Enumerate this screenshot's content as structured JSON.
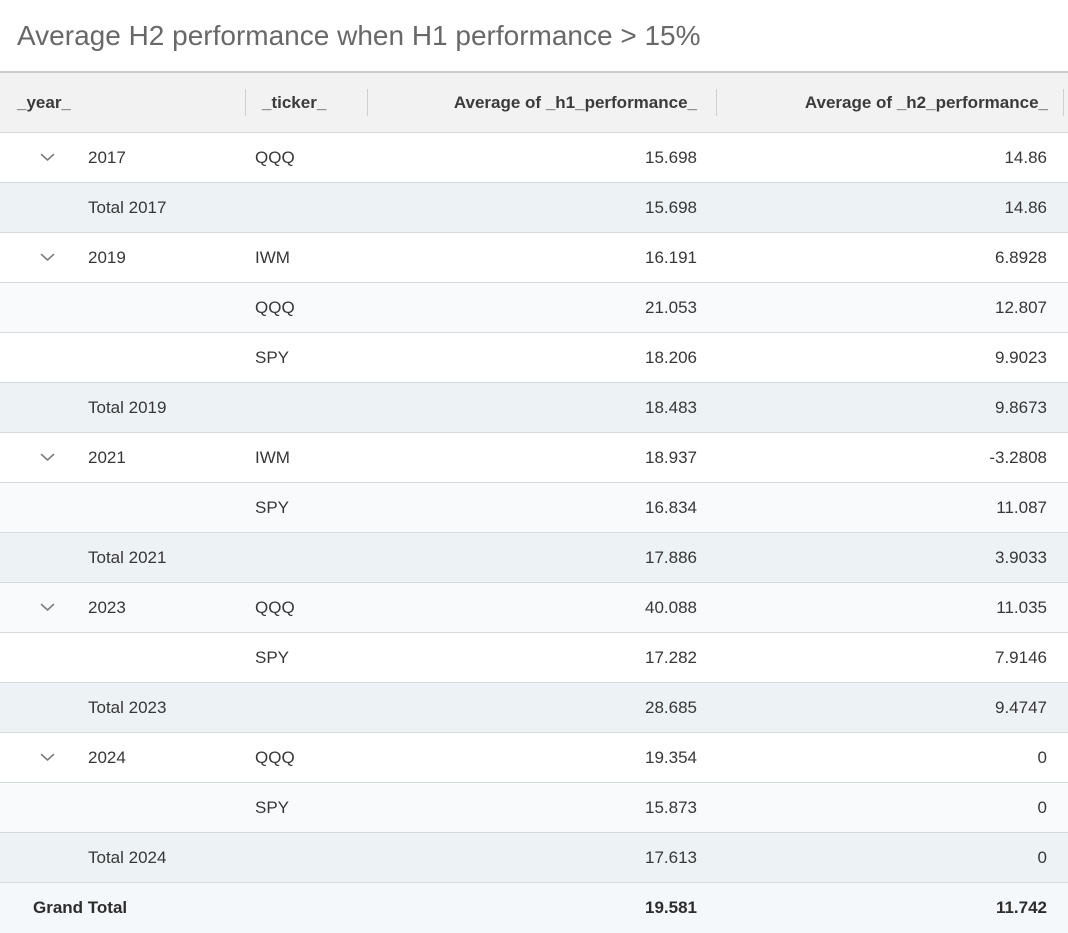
{
  "title": "Average H2 performance when H1 performance > 15%",
  "columns": [
    {
      "key": "year",
      "label": "_year_",
      "align": "left"
    },
    {
      "key": "ticker",
      "label": "_ticker_",
      "align": "left"
    },
    {
      "key": "h1",
      "label": "Average of _h1_performance_",
      "align": "right"
    },
    {
      "key": "h2",
      "label": "Average of _h2_performance_",
      "align": "right"
    }
  ],
  "icons": {
    "collapse_icon": "chevron-down"
  },
  "colors": {
    "header_bg": "#f2f2f2",
    "total_row_bg": "#edf2f5",
    "grand_total_bg": "#f4f8fa",
    "stripe_bg": "#f8fafc"
  },
  "rows": [
    {
      "type": "data",
      "expandable": true,
      "year": "2017",
      "ticker": "QQQ",
      "h1": "15.698",
      "h2": "14.86"
    },
    {
      "type": "total",
      "label": "Total 2017",
      "h1": "15.698",
      "h2": "14.86"
    },
    {
      "type": "data",
      "expandable": true,
      "year": "2019",
      "ticker": "IWM",
      "h1": "16.191",
      "h2": "6.8928"
    },
    {
      "type": "data",
      "expandable": false,
      "year": "",
      "ticker": "QQQ",
      "h1": "21.053",
      "h2": "12.807"
    },
    {
      "type": "data",
      "expandable": false,
      "year": "",
      "ticker": "SPY",
      "h1": "18.206",
      "h2": "9.9023"
    },
    {
      "type": "total",
      "label": "Total 2019",
      "h1": "18.483",
      "h2": "9.8673"
    },
    {
      "type": "data",
      "expandable": true,
      "year": "2021",
      "ticker": "IWM",
      "h1": "18.937",
      "h2": "-3.2808"
    },
    {
      "type": "data",
      "expandable": false,
      "year": "",
      "ticker": "SPY",
      "h1": "16.834",
      "h2": "11.087"
    },
    {
      "type": "total",
      "label": "Total 2021",
      "h1": "17.886",
      "h2": "3.9033"
    },
    {
      "type": "data",
      "expandable": true,
      "year": "2023",
      "ticker": "QQQ",
      "h1": "40.088",
      "h2": "11.035"
    },
    {
      "type": "data",
      "expandable": false,
      "year": "",
      "ticker": "SPY",
      "h1": "17.282",
      "h2": "7.9146"
    },
    {
      "type": "total",
      "label": "Total 2023",
      "h1": "28.685",
      "h2": "9.4747"
    },
    {
      "type": "data",
      "expandable": true,
      "year": "2024",
      "ticker": "QQQ",
      "h1": "19.354",
      "h2": "0"
    },
    {
      "type": "data",
      "expandable": false,
      "year": "",
      "ticker": "SPY",
      "h1": "15.873",
      "h2": "0"
    },
    {
      "type": "total",
      "label": "Total 2024",
      "h1": "17.613",
      "h2": "0"
    },
    {
      "type": "grand",
      "label": "Grand Total",
      "h1": "19.581",
      "h2": "11.742"
    }
  ]
}
